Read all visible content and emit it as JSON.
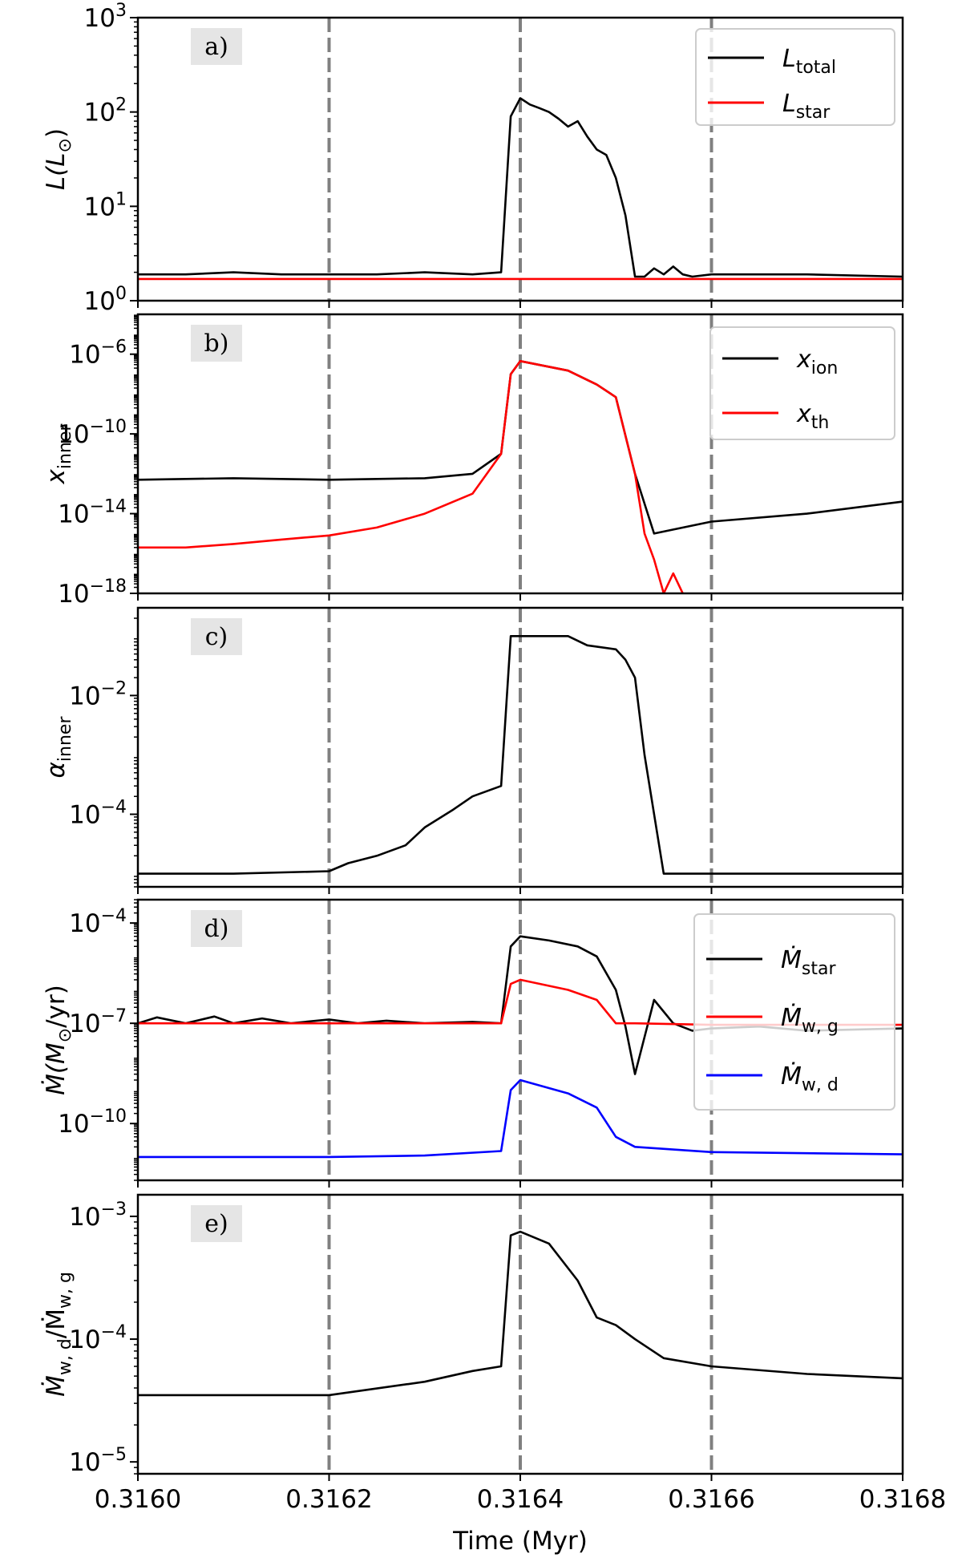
{
  "xlabel": "Time (Myr)",
  "xticks": [
    "0.3160",
    "0.3162",
    "0.3164",
    "0.3166",
    "0.3168"
  ],
  "colors": {
    "black": "#000000",
    "red": "#ff0000",
    "blue": "#0000ff",
    "vline": "#808080",
    "tagbg": "#e5e5e5"
  },
  "chart_data": [
    {
      "type": "line",
      "panel": "a)",
      "yscale": "log",
      "ylim": [
        1,
        1000
      ],
      "xlim": [
        0.316,
        0.3168
      ],
      "yticks": [
        {
          "base": "10",
          "exp": "0"
        },
        {
          "base": "10",
          "exp": "1"
        },
        {
          "base": "10",
          "exp": "2"
        },
        {
          "base": "10",
          "exp": "3"
        }
      ],
      "ylabel": {
        "main": "L(L",
        "sub": "⊙",
        "tail": ")"
      },
      "vlines": [
        0.3162,
        0.3164,
        0.3166
      ],
      "legend_position": "upper right",
      "series": [
        {
          "name": "L",
          "name_sub": "total",
          "color": "#000000",
          "x": [
            0.316,
            0.31605,
            0.3161,
            0.31615,
            0.3162,
            0.31625,
            0.3163,
            0.31635,
            0.31638,
            0.31639,
            0.3164,
            0.31641,
            0.31642,
            0.31643,
            0.31644,
            0.31645,
            0.31646,
            0.31647,
            0.31648,
            0.31649,
            0.3165,
            0.31651,
            0.31652,
            0.31653,
            0.31654,
            0.31655,
            0.31656,
            0.31657,
            0.31658,
            0.3166,
            0.3167,
            0.3168
          ],
          "y": [
            1.9,
            1.9,
            2.0,
            1.9,
            1.9,
            1.9,
            2.0,
            1.9,
            2.0,
            90,
            140,
            120,
            110,
            100,
            85,
            70,
            80,
            55,
            40,
            35,
            20,
            8,
            1.8,
            1.8,
            2.2,
            1.9,
            2.3,
            1.9,
            1.8,
            1.9,
            1.9,
            1.8
          ]
        },
        {
          "name": "L",
          "name_sub": "star",
          "color": "#ff0000",
          "x": [
            0.316,
            0.3168
          ],
          "y": [
            1.7,
            1.7
          ]
        }
      ]
    },
    {
      "type": "line",
      "panel": "b)",
      "yscale": "log",
      "ylim": [
        1e-18,
        0.0001
      ],
      "xlim": [
        0.316,
        0.3168
      ],
      "yticks": [
        {
          "base": "10",
          "exp": "−18"
        },
        {
          "base": "10",
          "exp": "−14"
        },
        {
          "base": "10",
          "exp": "−10"
        },
        {
          "base": "10",
          "exp": "−6"
        }
      ],
      "ylabel": {
        "main": "x",
        "sub": "inner",
        "tail": ""
      },
      "vlines": [
        0.3162,
        0.3164,
        0.3166
      ],
      "legend_position": "upper right",
      "series": [
        {
          "name": "x",
          "name_sub": "ion",
          "color": "#000000",
          "x": [
            0.316,
            0.3161,
            0.3162,
            0.3163,
            0.31635,
            0.31638,
            0.31639,
            0.3164,
            0.31645,
            0.31648,
            0.3165,
            0.31652,
            0.31654,
            0.3166,
            0.3167,
            0.3168
          ],
          "y": [
            5e-13,
            6e-13,
            5e-13,
            6e-13,
            1e-12,
            1e-11,
            1e-07,
            4.5e-07,
            1.5e-07,
            3e-08,
            7e-09,
            1e-12,
            1e-15,
            4e-15,
            1e-14,
            4e-14
          ]
        },
        {
          "name": "x",
          "name_sub": "th",
          "color": "#ff0000",
          "x": [
            0.316,
            0.31605,
            0.3161,
            0.31615,
            0.3162,
            0.31625,
            0.3163,
            0.31635,
            0.31638,
            0.31639,
            0.3164,
            0.31645,
            0.31648,
            0.3165,
            0.31652,
            0.31653,
            0.31654,
            0.31655,
            0.31656,
            0.31657
          ],
          "y": [
            2e-16,
            2e-16,
            3e-16,
            5e-16,
            8e-16,
            2e-15,
            1e-14,
            1e-13,
            1e-11,
            1e-07,
            4.5e-07,
            1.5e-07,
            3e-08,
            7e-09,
            1e-12,
            1e-15,
            5e-17,
            1e-18,
            1e-17,
            1e-18
          ]
        }
      ]
    },
    {
      "type": "line",
      "panel": "c)",
      "yscale": "log",
      "ylim": [
        6e-06,
        0.3
      ],
      "xlim": [
        0.316,
        0.3168
      ],
      "yticks": [
        {
          "base": "10",
          "exp": "−4"
        },
        {
          "base": "10",
          "exp": "−2"
        }
      ],
      "ylabel": {
        "main": "α",
        "sub": "inner",
        "tail": ""
      },
      "vlines": [
        0.3162,
        0.3164,
        0.3166
      ],
      "series": [
        {
          "name": "α",
          "name_sub": "inner",
          "color": "#000000",
          "x": [
            0.316,
            0.3161,
            0.3162,
            0.31622,
            0.31625,
            0.31628,
            0.3163,
            0.31633,
            0.31635,
            0.31638,
            0.31639,
            0.3164,
            0.31645,
            0.31647,
            0.3165,
            0.31651,
            0.31652,
            0.31653,
            0.31655,
            0.3166,
            0.3168
          ],
          "y": [
            1e-05,
            1e-05,
            1.1e-05,
            1.5e-05,
            2e-05,
            3e-05,
            6e-05,
            0.00012,
            0.0002,
            0.0003,
            0.1,
            0.1,
            0.1,
            0.07,
            0.06,
            0.04,
            0.02,
            0.001,
            1e-05,
            1e-05,
            1e-05
          ]
        }
      ]
    },
    {
      "type": "line",
      "panel": "d)",
      "yscale": "log",
      "ylim": [
        2e-12,
        0.0005
      ],
      "xlim": [
        0.316,
        0.3168
      ],
      "yticks": [
        {
          "base": "10",
          "exp": "−10"
        },
        {
          "base": "10",
          "exp": "−7"
        },
        {
          "base": "10",
          "exp": "−4"
        }
      ],
      "ylabel": {
        "main": "Ṁ(M",
        "sub": "⊙",
        "tail": "/yr)"
      },
      "vlines": [
        0.3162,
        0.3164,
        0.3166
      ],
      "legend_position": "right",
      "series": [
        {
          "name": "Ṁ",
          "name_sub": "star",
          "color": "#000000",
          "x": [
            0.316,
            0.31602,
            0.31605,
            0.31608,
            0.3161,
            0.31613,
            0.31616,
            0.3162,
            0.31623,
            0.31626,
            0.3163,
            0.31635,
            0.31638,
            0.31639,
            0.3164,
            0.31643,
            0.31646,
            0.31648,
            0.3165,
            0.31651,
            0.31652,
            0.31654,
            0.31656,
            0.31658,
            0.3166,
            0.31665,
            0.3167,
            0.3168
          ],
          "y": [
            1e-07,
            1.5e-07,
            1e-07,
            1.6e-07,
            1e-07,
            1.4e-07,
            1e-07,
            1.3e-07,
            1e-07,
            1.2e-07,
            1e-07,
            1.1e-07,
            1e-07,
            2e-05,
            4e-05,
            3e-05,
            2e-05,
            1e-05,
            1e-06,
            8e-08,
            3e-09,
            5e-07,
            1e-07,
            6e-08,
            7e-08,
            8e-08,
            6e-08,
            7e-08
          ]
        },
        {
          "name": "Ṁ",
          "name_sub": "w, g",
          "color": "#ff0000",
          "x": [
            0.316,
            0.3163,
            0.31638,
            0.31639,
            0.3164,
            0.31645,
            0.31648,
            0.3165,
            0.31652,
            0.3166,
            0.3168
          ],
          "y": [
            1e-07,
            1e-07,
            1e-07,
            1.5e-06,
            2e-06,
            1e-06,
            5e-07,
            1e-07,
            1e-07,
            9e-08,
            9e-08
          ]
        },
        {
          "name": "Ṁ",
          "name_sub": "w, d",
          "color": "#0000ff",
          "x": [
            0.316,
            0.3162,
            0.3163,
            0.31638,
            0.31639,
            0.3164,
            0.31645,
            0.31648,
            0.3165,
            0.31652,
            0.3166,
            0.3168
          ],
          "y": [
            1e-11,
            1e-11,
            1.1e-11,
            1.5e-11,
            1e-09,
            2e-09,
            8e-10,
            3e-10,
            4e-11,
            2e-11,
            1.4e-11,
            1.2e-11
          ]
        }
      ]
    },
    {
      "type": "line",
      "panel": "e)",
      "yscale": "log",
      "ylim": [
        8e-06,
        0.0015
      ],
      "xlim": [
        0.316,
        0.3168
      ],
      "yticks": [
        {
          "base": "10",
          "exp": "−5"
        },
        {
          "base": "10",
          "exp": "−4"
        },
        {
          "base": "10",
          "exp": "−3"
        }
      ],
      "ylabel": {
        "main": "Ṁ",
        "sub": "w, d",
        "tail": "/Ṁ",
        "sub2": "w, g"
      },
      "vlines": [
        0.3162,
        0.3164,
        0.3166
      ],
      "series": [
        {
          "name": "",
          "color": "#000000",
          "x": [
            0.316,
            0.3162,
            0.3163,
            0.31635,
            0.31638,
            0.31639,
            0.3164,
            0.31643,
            0.31646,
            0.31648,
            0.3165,
            0.31652,
            0.31655,
            0.3166,
            0.3167,
            0.3168
          ],
          "y": [
            3.5e-05,
            3.5e-05,
            4.5e-05,
            5.5e-05,
            6e-05,
            0.0007,
            0.00075,
            0.0006,
            0.0003,
            0.00015,
            0.00013,
            0.0001,
            7e-05,
            6e-05,
            5.2e-05,
            4.8e-05
          ]
        }
      ]
    }
  ]
}
